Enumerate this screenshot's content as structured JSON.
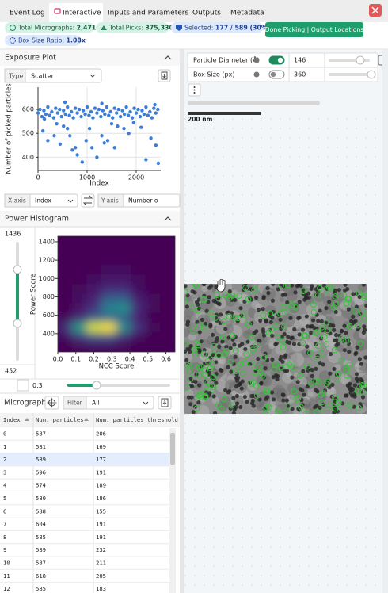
{
  "tabs": [
    "Event Log",
    "Interactive",
    "Inputs and Parameters",
    "Outputs",
    "Metadata"
  ],
  "badges": [
    {
      "label": "Total Micrographs:",
      "value": "2,471"
    },
    {
      "label": "Total Picks:",
      "value": "375,330"
    },
    {
      "label": "Selected:",
      "value": "177 / 589 (30%)"
    },
    {
      "label": "Box Size Ratio:",
      "value": "1.08x"
    }
  ],
  "button": "Done Picking | Output Locations",
  "exposure_panel": {
    "title": "Exposure Plot",
    "type_label": "Type",
    "type_value": "Scatter",
    "x_axis_label": "X-axis",
    "x_axis_value": "Index",
    "y_axis_label": "Y-axis",
    "y_axis_value": "Number o"
  },
  "histogram_panel": {
    "title": "Power Histogram",
    "slider_max": 1436,
    "slider_min": 452,
    "threshold": 0.3
  },
  "micrographs_panel": {
    "title": "Micrographs",
    "filter_label": "Filter",
    "filter_value": "All",
    "columns": [
      "Index",
      "Num. particles",
      "Num. particles threshold"
    ],
    "rows": [
      [
        0,
        587,
        206
      ],
      [
        1,
        581,
        169
      ],
      [
        2,
        589,
        177
      ],
      [
        3,
        596,
        191
      ],
      [
        4,
        574,
        189
      ],
      [
        5,
        580,
        186
      ],
      [
        6,
        588,
        155
      ],
      [
        7,
        604,
        191
      ],
      [
        8,
        585,
        191
      ],
      [
        9,
        589,
        232
      ],
      [
        10,
        587,
        211
      ],
      [
        11,
        618,
        205
      ],
      [
        12,
        585,
        183
      ]
    ],
    "selected_row": 2
  },
  "viewer": {
    "params": [
      {
        "label": "Particle Diameter (Å)",
        "toggle": true,
        "value": 146
      },
      {
        "label": "Box Size (px)",
        "toggle": false,
        "value": 360
      }
    ],
    "scale_bar": "200 nm"
  },
  "chart_data": [
    {
      "type": "scatter",
      "ylabel": "Number of picked particles",
      "xlabel": "Index",
      "color": "#3b7dd8",
      "xlim": [
        0,
        2500
      ],
      "ylim": [
        345,
        693
      ],
      "xticks": [
        0,
        1000,
        2000
      ],
      "yticks": [
        400,
        500,
        600
      ],
      "x": [
        0,
        40,
        80,
        120,
        160,
        200,
        240,
        280,
        320,
        360,
        400,
        440,
        480,
        520,
        560,
        600,
        640,
        680,
        720,
        760,
        800,
        840,
        880,
        920,
        960,
        1000,
        1040,
        1080,
        1120,
        1160,
        1200,
        1240,
        1280,
        1320,
        1360,
        1400,
        1440,
        1480,
        1520,
        1560,
        1600,
        1640,
        1680,
        1720,
        1760,
        1800,
        1840,
        1880,
        1920,
        1960,
        2000,
        2040,
        2080,
        2120,
        2160,
        2200,
        2240,
        2280,
        2320,
        2360,
        2400,
        2440,
        100,
        130,
        200,
        330,
        380,
        450,
        520,
        600,
        650,
        700,
        760,
        800,
        900,
        980,
        1050,
        1100,
        1200,
        1300,
        1350,
        1420,
        1500,
        1560,
        1620,
        1750,
        1850,
        1950,
        2100,
        2200,
        2300,
        2400,
        2450,
        550,
        1300,
        2380
      ],
      "y": [
        585,
        600,
        570,
        595,
        580,
        610,
        575,
        590,
        565,
        605,
        585,
        600,
        570,
        595,
        580,
        610,
        575,
        590,
        565,
        605,
        585,
        600,
        570,
        595,
        580,
        610,
        575,
        590,
        565,
        605,
        585,
        600,
        570,
        595,
        580,
        610,
        575,
        590,
        565,
        605,
        585,
        600,
        570,
        595,
        580,
        610,
        575,
        590,
        565,
        605,
        585,
        600,
        570,
        595,
        580,
        610,
        575,
        590,
        565,
        605,
        585,
        600,
        510,
        560,
        470,
        490,
        540,
        455,
        530,
        520,
        490,
        430,
        440,
        410,
        380,
        470,
        520,
        440,
        400,
        490,
        460,
        470,
        540,
        440,
        530,
        520,
        500,
        545,
        525,
        390,
        480,
        450,
        375,
        630,
        625,
        620
      ]
    },
    {
      "type": "heatmap",
      "xlabel": "NCC Score",
      "ylabel": "Power Score",
      "xlim": [
        0,
        0.65
      ],
      "ylim": [
        200,
        1460
      ],
      "xticks": [
        {
          "value": 0,
          "label": "0.0"
        },
        0.1,
        0.2,
        0.3,
        0.4,
        0.5,
        0.6
      ],
      "yticks": [
        400,
        600,
        800,
        1000,
        1200,
        1400
      ],
      "z": [
        [
          0,
          0,
          0,
          0,
          0,
          0,
          0,
          0
        ],
        [
          0,
          0,
          0,
          0,
          0,
          0,
          0,
          0
        ],
        [
          0,
          0,
          0,
          0.01,
          0.01,
          0,
          0,
          0
        ],
        [
          0,
          0,
          0.01,
          0.03,
          0.03,
          0.01,
          0,
          0
        ],
        [
          0,
          0.01,
          0.03,
          0.06,
          0.06,
          0.02,
          0,
          0
        ],
        [
          0,
          0.02,
          0.06,
          0.12,
          0.12,
          0.04,
          0.01,
          0
        ],
        [
          0,
          0.03,
          0.1,
          0.3,
          0.3,
          0.08,
          0.02,
          0
        ],
        [
          0,
          0.05,
          0.15,
          0.45,
          0.5,
          0.12,
          0.02,
          0
        ],
        [
          0.02,
          0.12,
          0.3,
          0.35,
          0.3,
          0.08,
          0.01,
          0
        ],
        [
          0.15,
          0.55,
          0.95,
          1,
          0.5,
          0.15,
          0.02,
          0
        ],
        [
          0.03,
          0.15,
          0.25,
          0.25,
          0.12,
          0.03,
          0,
          0
        ],
        [
          0,
          0.02,
          0.03,
          0.03,
          0.02,
          0,
          0,
          0
        ]
      ]
    }
  ]
}
